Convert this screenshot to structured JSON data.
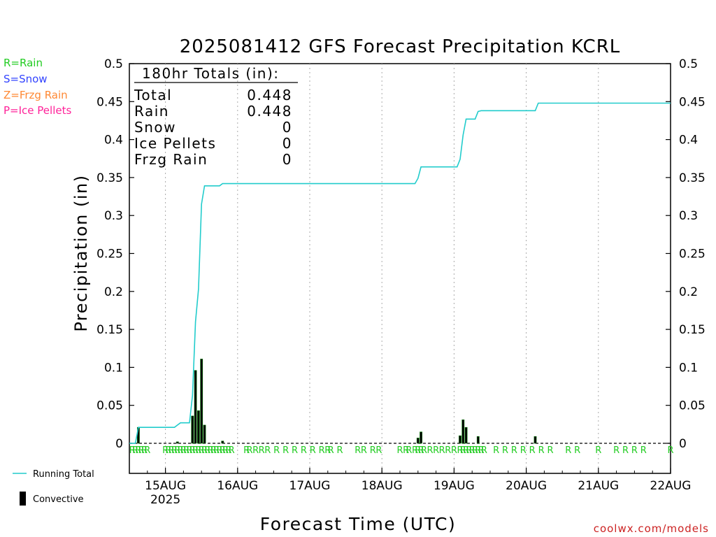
{
  "title": "2025081412 GFS Forecast Precipitation KCRL",
  "legend_types": [
    {
      "label": "R=Rain",
      "color": "#22cc22"
    },
    {
      "label": "S=Snow",
      "color": "#3344ff"
    },
    {
      "label": "Z=Frzg Rain",
      "color": "#ff8833"
    },
    {
      "label": "P=Ice Pellets",
      "color": "#ff2299"
    }
  ],
  "totals_box": {
    "header": "180hr Totals (in):",
    "rows": [
      {
        "label": "Total",
        "value": "0.448"
      },
      {
        "label": "Rain",
        "value": "0.448"
      },
      {
        "label": "Snow",
        "value": "0"
      },
      {
        "label": "Ice Pellets",
        "value": "0"
      },
      {
        "label": "Frzg Rain",
        "value": "0"
      }
    ]
  },
  "bottom_legend": {
    "line_label": "Running Total",
    "bar_label": "Convective",
    "line_color": "#22cccc",
    "bar_color": "#000000"
  },
  "credit": "coolwx.com/models",
  "colors": {
    "running_total": "#22cccc",
    "convective": "#000000",
    "precip_bar": "#007a00",
    "rain_marker": "#22cc22"
  },
  "chart_data": {
    "type": "bar",
    "title": "2025081412 GFS Forecast Precipitation KCRL",
    "xlabel": "Forecast Time (UTC)",
    "ylabel": "Precipitation (in)",
    "ylim": [
      0,
      0.5
    ],
    "y_ticks": [
      "0",
      "0.05",
      "0.1",
      "0.15",
      "0.2",
      "0.25",
      "0.3",
      "0.35",
      "0.4",
      "0.45",
      "0.5"
    ],
    "x_range": [
      "2025-08-14 12Z",
      "2025-08-22 00Z"
    ],
    "x_ticks": [
      {
        "label": "15AUG",
        "sublabel": "2025",
        "t": "2025-08-15 00Z"
      },
      {
        "label": "16AUG",
        "t": "2025-08-16 00Z"
      },
      {
        "label": "17AUG",
        "t": "2025-08-17 00Z"
      },
      {
        "label": "18AUG",
        "t": "2025-08-18 00Z"
      },
      {
        "label": "19AUG",
        "t": "2025-08-19 00Z"
      },
      {
        "label": "20AUG",
        "t": "2025-08-20 00Z"
      },
      {
        "label": "21AUG",
        "t": "2025-08-21 00Z"
      },
      {
        "label": "22AUG",
        "t": "2025-08-22 00Z"
      }
    ],
    "grid": "vertical dotted",
    "series": [
      {
        "name": "Running Total",
        "type": "line",
        "points": [
          {
            "t": "2025-08-14 12Z",
            "v": 0
          },
          {
            "t": "2025-08-14 14Z",
            "v": 0
          },
          {
            "t": "2025-08-14 15Z",
            "v": 0.021
          },
          {
            "t": "2025-08-14 21Z",
            "v": 0.021
          },
          {
            "t": "2025-08-15 03Z",
            "v": 0.021
          },
          {
            "t": "2025-08-15 05Z",
            "v": 0.027
          },
          {
            "t": "2025-08-15 08Z",
            "v": 0.027
          },
          {
            "t": "2025-08-15 09Z",
            "v": 0.063
          },
          {
            "t": "2025-08-15 10Z",
            "v": 0.16
          },
          {
            "t": "2025-08-15 11Z",
            "v": 0.203
          },
          {
            "t": "2025-08-15 12Z",
            "v": 0.315
          },
          {
            "t": "2025-08-15 13Z",
            "v": 0.339
          },
          {
            "t": "2025-08-15 18Z",
            "v": 0.339
          },
          {
            "t": "2025-08-15 19Z",
            "v": 0.342
          },
          {
            "t": "2025-08-18 11Z",
            "v": 0.342
          },
          {
            "t": "2025-08-18 12Z",
            "v": 0.349
          },
          {
            "t": "2025-08-18 13Z",
            "v": 0.364
          },
          {
            "t": "2025-08-19 01Z",
            "v": 0.364
          },
          {
            "t": "2025-08-19 02Z",
            "v": 0.374
          },
          {
            "t": "2025-08-19 03Z",
            "v": 0.406
          },
          {
            "t": "2025-08-19 04Z",
            "v": 0.427
          },
          {
            "t": "2025-08-19 07Z",
            "v": 0.427
          },
          {
            "t": "2025-08-19 08Z",
            "v": 0.437
          },
          {
            "t": "2025-08-19 09Z",
            "v": 0.438
          },
          {
            "t": "2025-08-20 03Z",
            "v": 0.438
          },
          {
            "t": "2025-08-20 04Z",
            "v": 0.448
          },
          {
            "t": "2025-08-22 00Z",
            "v": 0.448
          }
        ]
      },
      {
        "name": "Convective",
        "type": "bar",
        "points": [
          {
            "t": "2025-08-14 15Z",
            "v": 0.021
          },
          {
            "t": "2025-08-15 04Z",
            "v": 0.002
          },
          {
            "t": "2025-08-15 09Z",
            "v": 0.036
          },
          {
            "t": "2025-08-15 10Z",
            "v": 0.096
          },
          {
            "t": "2025-08-15 11Z",
            "v": 0.043
          },
          {
            "t": "2025-08-15 12Z",
            "v": 0.111
          },
          {
            "t": "2025-08-15 13Z",
            "v": 0.024
          },
          {
            "t": "2025-08-15 19Z",
            "v": 0.003
          },
          {
            "t": "2025-08-18 12Z",
            "v": 0.007
          },
          {
            "t": "2025-08-18 13Z",
            "v": 0.015
          },
          {
            "t": "2025-08-19 02Z",
            "v": 0.01
          },
          {
            "t": "2025-08-19 03Z",
            "v": 0.031
          },
          {
            "t": "2025-08-19 04Z",
            "v": 0.021
          },
          {
            "t": "2025-08-19 08Z",
            "v": 0.009
          },
          {
            "t": "2025-08-20 03Z",
            "v": 0.009
          }
        ]
      }
    ],
    "precip_type_markers": {
      "letter": "R",
      "times": [
        "2025-08-14 13Z",
        "2025-08-14 14Z",
        "2025-08-14 15Z",
        "2025-08-14 16Z",
        "2025-08-14 17Z",
        "2025-08-14 18Z",
        "2025-08-15 00Z",
        "2025-08-15 01Z",
        "2025-08-15 02Z",
        "2025-08-15 03Z",
        "2025-08-15 04Z",
        "2025-08-15 05Z",
        "2025-08-15 06Z",
        "2025-08-15 07Z",
        "2025-08-15 08Z",
        "2025-08-15 09Z",
        "2025-08-15 10Z",
        "2025-08-15 11Z",
        "2025-08-15 12Z",
        "2025-08-15 13Z",
        "2025-08-15 14Z",
        "2025-08-15 15Z",
        "2025-08-15 16Z",
        "2025-08-15 17Z",
        "2025-08-15 18Z",
        "2025-08-15 19Z",
        "2025-08-15 20Z",
        "2025-08-15 21Z",
        "2025-08-15 22Z",
        "2025-08-16 03Z",
        "2025-08-16 04Z",
        "2025-08-16 06Z",
        "2025-08-16 08Z",
        "2025-08-16 10Z",
        "2025-08-16 13Z",
        "2025-08-16 16Z",
        "2025-08-16 19Z",
        "2025-08-16 22Z",
        "2025-08-17 01Z",
        "2025-08-17 04Z",
        "2025-08-17 06Z",
        "2025-08-17 07Z",
        "2025-08-17 10Z",
        "2025-08-17 16Z",
        "2025-08-17 18Z",
        "2025-08-17 21Z",
        "2025-08-17 23Z",
        "2025-08-18 06Z",
        "2025-08-18 08Z",
        "2025-08-18 09Z",
        "2025-08-18 11Z",
        "2025-08-18 12Z",
        "2025-08-18 13Z",
        "2025-08-18 14Z",
        "2025-08-18 16Z",
        "2025-08-18 18Z",
        "2025-08-18 20Z",
        "2025-08-18 22Z",
        "2025-08-19 00Z",
        "2025-08-19 02Z",
        "2025-08-19 03Z",
        "2025-08-19 04Z",
        "2025-08-19 05Z",
        "2025-08-19 06Z",
        "2025-08-19 07Z",
        "2025-08-19 08Z",
        "2025-08-19 09Z",
        "2025-08-19 10Z",
        "2025-08-19 14Z",
        "2025-08-19 17Z",
        "2025-08-19 20Z",
        "2025-08-19 23Z",
        "2025-08-20 02Z",
        "2025-08-20 05Z",
        "2025-08-20 08Z",
        "2025-08-20 14Z",
        "2025-08-20 17Z",
        "2025-08-21 00Z",
        "2025-08-21 06Z",
        "2025-08-21 09Z",
        "2025-08-21 12Z",
        "2025-08-21 15Z",
        "2025-08-22 00Z"
      ]
    }
  }
}
